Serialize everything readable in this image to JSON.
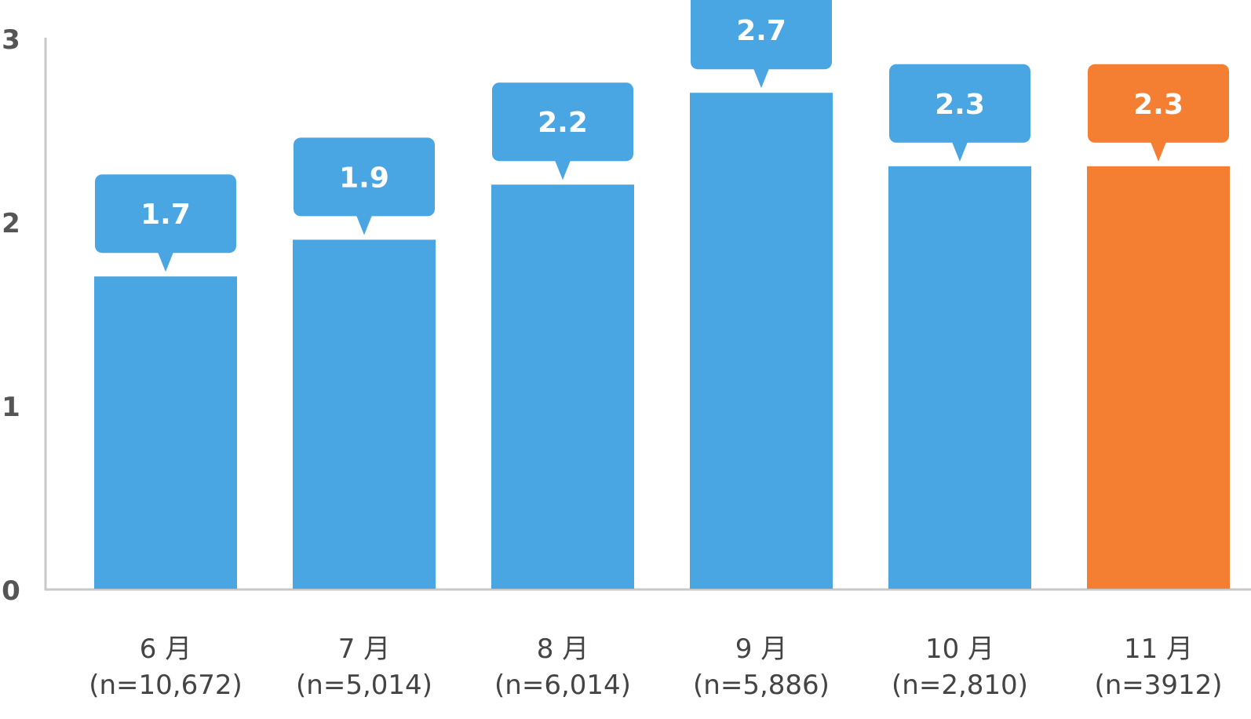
{
  "chart_data": {
    "type": "bar",
    "categories": [
      "6 月",
      "7 月",
      "8 月",
      "9 月",
      "10 月",
      "11 月"
    ],
    "sample_sizes": [
      "(n=10,672)",
      "(n=5,014)",
      "(n=6,014)",
      "(n=5,886)",
      "(n=2,810)",
      "(n=3912)"
    ],
    "values": [
      1.7,
      1.9,
      2.2,
      2.7,
      2.3,
      2.3
    ],
    "value_labels": [
      "1.7",
      "1.9",
      "2.2",
      "2.7",
      "2.3",
      "2.3"
    ],
    "title": "",
    "xlabel": "",
    "ylabel": "",
    "ylim": [
      0,
      3
    ],
    "yticks": [
      "0",
      "1",
      "2",
      "3"
    ],
    "grid": false,
    "legend": "none",
    "colors": {
      "default": "#4aa6e2",
      "highlight": "#f47f32",
      "axis": "#c8c8c8"
    },
    "highlight_index": 5
  }
}
